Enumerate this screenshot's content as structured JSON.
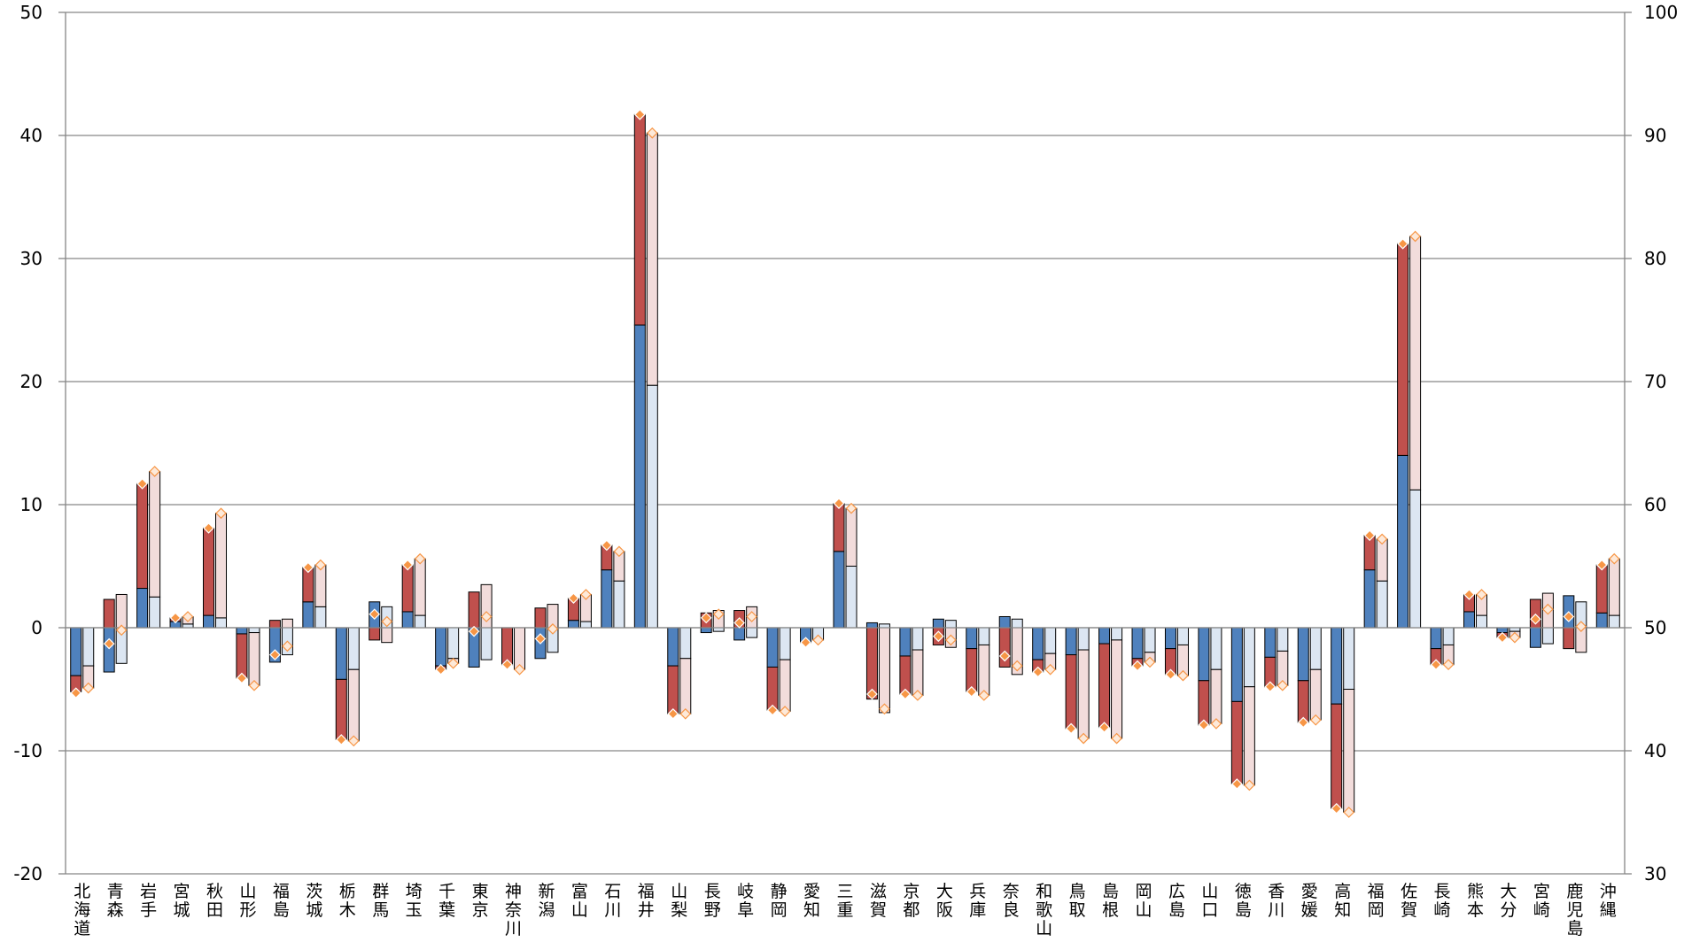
{
  "chart_data": {
    "type": "bar",
    "title": "",
    "xlabel": "",
    "ylabel": "",
    "ylim": [
      -20,
      50
    ],
    "y2lim": [
      30,
      100
    ],
    "y_ticks": [
      "50",
      "40",
      "30",
      "20",
      "10",
      "0",
      "-10",
      "-20"
    ],
    "y2_ticks": [
      "100",
      "90",
      "80",
      "70",
      "60",
      "50",
      "40",
      "30"
    ],
    "grid": true,
    "colors": {
      "blue": "#4f81bd",
      "red": "#c0504d",
      "light_blue": "#dce6f2",
      "light_red": "#f2dcdb",
      "marker": "#f79646",
      "grid": "#868686",
      "negative_tick": "#ff0000"
    },
    "categories": [
      "北海道",
      "青森",
      "岩手",
      "宮城",
      "秋田",
      "山形",
      "福島",
      "茨城",
      "栃木",
      "群馬",
      "埼玉",
      "千葉",
      "東京",
      "神奈川",
      "新潟",
      "富山",
      "石川",
      "福井",
      "山梨",
      "長野",
      "岐阜",
      "静岡",
      "愛知",
      "三重",
      "滋賀",
      "京都",
      "大阪",
      "兵庫",
      "奈良",
      "和歌山",
      "鳥取",
      "島根",
      "岡山",
      "広島",
      "山口",
      "徳島",
      "香川",
      "愛媛",
      "高知",
      "福岡",
      "佐賀",
      "長崎",
      "熊本",
      "大分",
      "宮崎",
      "鹿児島",
      "沖縄"
    ],
    "series": [
      {
        "values": [
          -3.9,
          -3.6,
          3.2,
          0.5,
          1.0,
          -0.5,
          -2.8,
          2.1,
          -4.2,
          2.1,
          1.3,
          -3.1,
          -3.2,
          0.0,
          -2.5,
          0.6,
          4.7,
          24.6,
          -3.1,
          -0.4,
          -1.0,
          -3.2,
          -1.2,
          6.2,
          0.4,
          -2.3,
          0.7,
          -1.7,
          0.9,
          -2.6,
          -2.2,
          -1.3,
          -2.5,
          -1.7,
          -4.3,
          -6.0,
          -2.4,
          -4.3,
          -6.2,
          4.7,
          14.0,
          -1.7,
          1.3,
          -0.4,
          -1.6,
          2.6,
          1.2
        ]
      },
      {
        "values": [
          -1.3,
          2.3,
          8.5,
          0.3,
          7.1,
          -3.6,
          0.6,
          2.8,
          -4.9,
          -1.0,
          3.8,
          -0.3,
          2.9,
          -3.0,
          1.6,
          1.8,
          2.0,
          17.1,
          -3.9,
          1.2,
          1.4,
          -3.5,
          0.0,
          3.9,
          -5.8,
          -3.1,
          -1.4,
          -3.5,
          -3.2,
          -1.0,
          -6.0,
          -6.8,
          -0.6,
          -2.1,
          -3.6,
          -6.7,
          -2.4,
          -3.4,
          -8.5,
          2.8,
          17.2,
          -1.3,
          1.4,
          -0.4,
          2.3,
          -1.7,
          3.9
        ]
      },
      {
        "values": [
          -5.3,
          -1.3,
          11.7,
          0.8,
          8.1,
          -4.1,
          -2.2,
          4.9,
          -9.1,
          1.1,
          5.1,
          -3.4,
          -0.3,
          -3.0,
          -0.9,
          2.4,
          6.7,
          41.7,
          -7.0,
          0.8,
          0.4,
          -6.7,
          -1.2,
          10.1,
          -5.4,
          -5.4,
          -0.7,
          -5.2,
          -2.3,
          -3.6,
          -8.2,
          -8.1,
          -3.1,
          -3.8,
          -7.9,
          -12.7,
          -4.8,
          -7.7,
          -14.7,
          7.5,
          31.2,
          -3.0,
          2.7,
          -0.8,
          0.7,
          0.9,
          5.1
        ]
      },
      {
        "values": [
          -3.1,
          -2.9,
          2.5,
          0.3,
          0.8,
          -0.4,
          -2.2,
          1.7,
          -3.4,
          1.7,
          1.0,
          -2.5,
          -2.6,
          0.0,
          -2.0,
          0.5,
          3.8,
          19.7,
          -2.5,
          -0.3,
          -0.8,
          -2.6,
          -1.0,
          5.0,
          0.3,
          -1.8,
          0.6,
          -1.4,
          0.7,
          -2.1,
          -1.8,
          -1.0,
          -2.0,
          -1.4,
          -3.4,
          -4.8,
          -1.9,
          -3.4,
          -5.0,
          3.8,
          11.2,
          -1.4,
          1.0,
          -0.3,
          -1.3,
          2.1,
          1.0
        ]
      },
      {
        "values": [
          -1.8,
          2.7,
          10.2,
          0.6,
          8.5,
          -4.3,
          0.7,
          3.4,
          -5.8,
          -1.2,
          4.6,
          -0.4,
          3.5,
          -3.4,
          1.9,
          2.2,
          2.4,
          20.5,
          -4.5,
          1.4,
          1.7,
          -4.2,
          0.0,
          4.7,
          -6.9,
          -3.7,
          -1.6,
          -4.1,
          -3.8,
          -1.3,
          -7.2,
          -8.0,
          -0.8,
          -2.5,
          -4.4,
          -8.0,
          -2.8,
          -4.1,
          -10.0,
          3.4,
          20.6,
          -1.6,
          1.7,
          -0.5,
          2.8,
          -2.0,
          4.6
        ]
      },
      {
        "values": [
          -4.9,
          -0.2,
          12.7,
          0.9,
          9.3,
          -4.7,
          -1.5,
          5.1,
          -9.2,
          0.5,
          5.6,
          -2.9,
          0.9,
          -3.4,
          -0.1,
          2.7,
          6.2,
          40.2,
          -7.0,
          1.1,
          0.9,
          -6.8,
          -1.0,
          9.7,
          -6.6,
          -5.5,
          -1.0,
          -5.5,
          -3.1,
          -3.4,
          -9.0,
          -9.0,
          -2.8,
          -3.9,
          -7.8,
          -12.8,
          -4.7,
          -7.5,
          -15.0,
          7.2,
          31.8,
          -3.0,
          2.7,
          -0.8,
          1.5,
          0.1,
          5.6
        ]
      }
    ]
  }
}
